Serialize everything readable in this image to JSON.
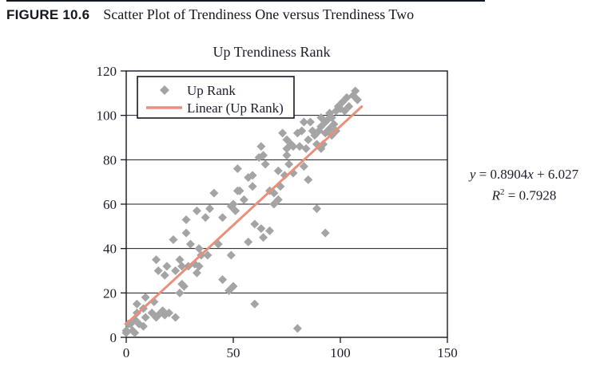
{
  "figure": {
    "label": "FIGURE 10.6",
    "caption": "Scatter Plot of Trendiness One versus Trendiness Two"
  },
  "equation": {
    "y_var": "y",
    "line1_mid": " = 0.8904",
    "x_var": "x",
    "line1_tail": " + 6.027",
    "r_var": "R",
    "r_exp": "2",
    "line2_rest": " = 0.7928"
  },
  "chart_data": {
    "type": "scatter",
    "title": "Up Trendiness Rank",
    "xlabel": "",
    "ylabel": "",
    "xlim": [
      0,
      150
    ],
    "ylim": [
      0,
      120
    ],
    "x_ticks": [
      0,
      50,
      100,
      150
    ],
    "y_ticks": [
      0,
      20,
      40,
      60,
      80,
      100,
      120
    ],
    "grid": "horizontal",
    "legend_position": "top-left-inside",
    "marker_color": "#a4a4a4",
    "line_color": "#e8907c",
    "axis_color": "#14181f",
    "legend": [
      {
        "label": "Up Rank",
        "marker": "diamond"
      },
      {
        "label": "Linear (Up Rank)",
        "marker": "line"
      }
    ],
    "trendline": {
      "slope": 0.8904,
      "intercept": 6.027,
      "x_start": 0,
      "x_end": 110
    },
    "series_name": "Up Rank",
    "points": [
      [
        0,
        2
      ],
      [
        0,
        3
      ],
      [
        1,
        6
      ],
      [
        2,
        6
      ],
      [
        3,
        3
      ],
      [
        4,
        2
      ],
      [
        4,
        8
      ],
      [
        5,
        11
      ],
      [
        5,
        15
      ],
      [
        6,
        6
      ],
      [
        8,
        5
      ],
      [
        8,
        13
      ],
      [
        9,
        9
      ],
      [
        9,
        18
      ],
      [
        12,
        11
      ],
      [
        13,
        16
      ],
      [
        14,
        9
      ],
      [
        15,
        10
      ],
      [
        17,
        12
      ],
      [
        18,
        10
      ],
      [
        20,
        11
      ],
      [
        23,
        9
      ],
      [
        14,
        35
      ],
      [
        15,
        30
      ],
      [
        18,
        28
      ],
      [
        19,
        32
      ],
      [
        23,
        30
      ],
      [
        25,
        35
      ],
      [
        26,
        32
      ],
      [
        29,
        32
      ],
      [
        32,
        33
      ],
      [
        34,
        32
      ],
      [
        26,
        24
      ],
      [
        27,
        23
      ],
      [
        25,
        20
      ],
      [
        33,
        29
      ],
      [
        22,
        44
      ],
      [
        28,
        47
      ],
      [
        30,
        42
      ],
      [
        34,
        40
      ],
      [
        35,
        37
      ],
      [
        38,
        37
      ],
      [
        43,
        42
      ],
      [
        49,
        37
      ],
      [
        45,
        26
      ],
      [
        48,
        21
      ],
      [
        50,
        23
      ],
      [
        28,
        53
      ],
      [
        33,
        57
      ],
      [
        37,
        54
      ],
      [
        39,
        58
      ],
      [
        41,
        65
      ],
      [
        45,
        54
      ],
      [
        49,
        59
      ],
      [
        51,
        57
      ],
      [
        52,
        66
      ],
      [
        50,
        60
      ],
      [
        52,
        76
      ],
      [
        53,
        66
      ],
      [
        55,
        62
      ],
      [
        57,
        72
      ],
      [
        59,
        73
      ],
      [
        59,
        68
      ],
      [
        57,
        43
      ],
      [
        60,
        51
      ],
      [
        63,
        49
      ],
      [
        64,
        45
      ],
      [
        67,
        48
      ],
      [
        60,
        15
      ],
      [
        62,
        81
      ],
      [
        63,
        86
      ],
      [
        65,
        78
      ],
      [
        64,
        82
      ],
      [
        67,
        66
      ],
      [
        69,
        65
      ],
      [
        69,
        60
      ],
      [
        71,
        62
      ],
      [
        71,
        75
      ],
      [
        72,
        68
      ],
      [
        73,
        92
      ],
      [
        74,
        73
      ],
      [
        75,
        82
      ],
      [
        76,
        78
      ],
      [
        78,
        74
      ],
      [
        78,
        86
      ],
      [
        75,
        85
      ],
      [
        75,
        89
      ],
      [
        77,
        87
      ],
      [
        81,
        86
      ],
      [
        80,
        92
      ],
      [
        82,
        93
      ],
      [
        83,
        77
      ],
      [
        83,
        97
      ],
      [
        84,
        85
      ],
      [
        85,
        71
      ],
      [
        85,
        89
      ],
      [
        86,
        97
      ],
      [
        87,
        93
      ],
      [
        88,
        91
      ],
      [
        89,
        58
      ],
      [
        93,
        47
      ],
      [
        80,
        4
      ],
      [
        89,
        87
      ],
      [
        90,
        93
      ],
      [
        91,
        85
      ],
      [
        91,
        95
      ],
      [
        91,
        99
      ],
      [
        92,
        87
      ],
      [
        93,
        92
      ],
      [
        93,
        97
      ],
      [
        94,
        98
      ],
      [
        95,
        94
      ],
      [
        95,
        101
      ],
      [
        96,
        91
      ],
      [
        96,
        99
      ],
      [
        97,
        96
      ],
      [
        98,
        93
      ],
      [
        98,
        102
      ],
      [
        99,
        104
      ],
      [
        100,
        103
      ],
      [
        101,
        106
      ],
      [
        102,
        102
      ],
      [
        103,
        108
      ],
      [
        104,
        104
      ],
      [
        106,
        109
      ],
      [
        107,
        111
      ],
      [
        108,
        107
      ]
    ]
  }
}
